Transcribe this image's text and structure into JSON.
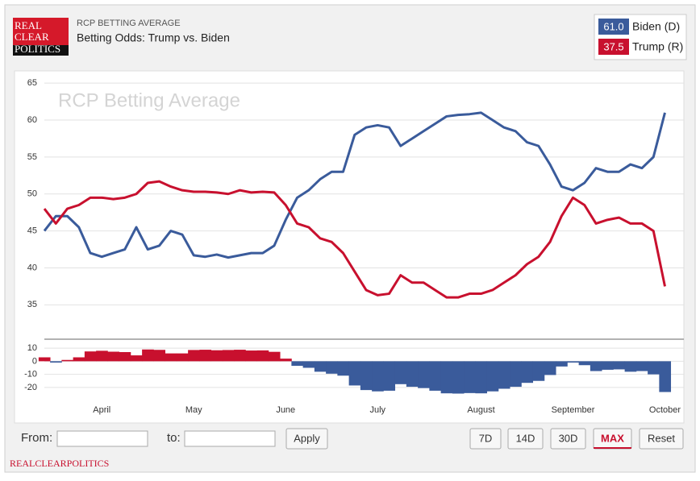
{
  "header": {
    "logo": [
      "REAL",
      "CLEAR",
      "POLITICS"
    ],
    "footer": "REALCLEARPOLITICS"
  },
  "controls": {
    "from": "From:",
    "to": "to:",
    "apply": "Apply",
    "ranges": [
      "7D",
      "14D",
      "30D",
      "MAX"
    ],
    "reset": "Reset"
  },
  "chart_data": [
    {
      "type": "line",
      "subtitle": "RCP BETTING AVERAGE",
      "title": "Betting Odds: Trump vs. Biden",
      "watermark": "RCP Betting Average",
      "categories": [
        null,
        null,
        null,
        null,
        null,
        "April",
        null,
        null,
        null,
        null,
        null,
        null,
        null,
        "May",
        null,
        null,
        null,
        null,
        null,
        null,
        null,
        "June",
        null,
        null,
        null,
        null,
        null,
        null,
        null,
        "July",
        null,
        null,
        null,
        null,
        null,
        null,
        null,
        null,
        "August",
        null,
        null,
        null,
        null,
        null,
        null,
        null,
        "September",
        null,
        null,
        null,
        null,
        null,
        null,
        null,
        "October"
      ],
      "series": [
        {
          "name": "Biden (D)",
          "color": "#3a5b9b",
          "current": {
            "value": 61,
            "label": "61.0"
          },
          "values": [
            45,
            47,
            47,
            45.5,
            42,
            41.5,
            42,
            42.5,
            45.5,
            42.5,
            43,
            45,
            44.5,
            41.7,
            41.5,
            41.8,
            41.4,
            41.7,
            42,
            42,
            43,
            46.5,
            49.5,
            50.5,
            52,
            53,
            53,
            58,
            59,
            59.3,
            59,
            56.5,
            57.5,
            58.5,
            59.5,
            60.5,
            60.7,
            60.8,
            61,
            60,
            59,
            58.5,
            57,
            56.5,
            54,
            51,
            50.5,
            51.5,
            53.5,
            53,
            53,
            54,
            53.5,
            55,
            61
          ]
        },
        {
          "name": "Trump (R)",
          "color": "#c8102e",
          "current": {
            "value": 37.5,
            "label": "37.5"
          },
          "values": [
            48,
            46,
            48,
            48.5,
            49.5,
            49.5,
            49.3,
            49.5,
            50,
            51.5,
            51.7,
            51,
            50.5,
            50.3,
            50.3,
            50.2,
            50,
            50.5,
            50.2,
            50.3,
            50.2,
            48.5,
            46,
            45.5,
            44,
            43.5,
            42,
            39.5,
            37,
            36.3,
            36.5,
            39,
            38,
            38,
            37,
            36,
            36,
            36.5,
            36.5,
            37,
            38,
            39,
            40.5,
            41.5,
            43.5,
            47,
            49.5,
            48.5,
            46,
            46.5,
            46.8,
            46,
            46,
            45,
            37.5
          ]
        }
      ],
      "ylim": [
        31,
        66
      ],
      "yticks": [
        35,
        40,
        45,
        50,
        55,
        60,
        65
      ],
      "grid": true
    },
    {
      "type": "bar",
      "positive_color": "#c8102e",
      "negative_color": "#3a5b9b",
      "values": [
        3,
        -1,
        1,
        3,
        7.5,
        8,
        7.3,
        7,
        4.5,
        9,
        8.7,
        6,
        6,
        8.6,
        8.8,
        8.4,
        8.6,
        8.8,
        8.2,
        8.3,
        7.2,
        2,
        -3.5,
        -5,
        -8,
        -9.5,
        -11,
        -18.5,
        -22,
        -23,
        -22.5,
        -17.5,
        -19.5,
        -20.5,
        -22.5,
        -24.5,
        -24.7,
        -24.3,
        -24.5,
        -23,
        -21,
        -19.5,
        -16.5,
        -15,
        -10.5,
        -4,
        -1,
        -3,
        -7.5,
        -6.5,
        -6.2,
        -8,
        -7.5,
        -10,
        -23.5
      ],
      "ylim": [
        -25,
        15
      ],
      "yticks": [
        10,
        0,
        -10,
        -20
      ],
      "grid": true
    }
  ]
}
